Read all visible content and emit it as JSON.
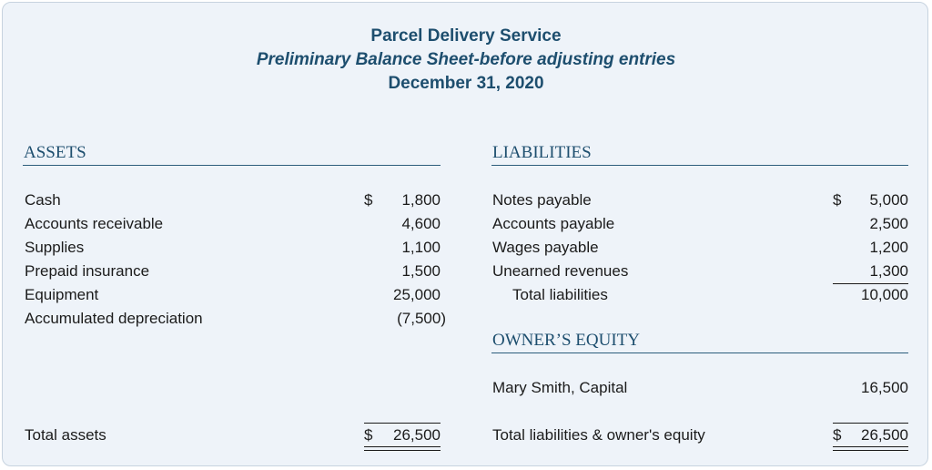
{
  "header": {
    "company": "Parcel Delivery Service",
    "title": "Preliminary Balance Sheet-before adjusting entries",
    "date": "December 31, 2020"
  },
  "assets": {
    "heading": "ASSETS",
    "rows": [
      {
        "label": "Cash",
        "currency": "$",
        "amount": "1,800"
      },
      {
        "label": "Accounts receivable",
        "amount": "4,600"
      },
      {
        "label": "Supplies",
        "amount": "1,100"
      },
      {
        "label": "Prepaid insurance",
        "amount": "1,500"
      },
      {
        "label": "Equipment",
        "amount": "25,000"
      },
      {
        "label": "Accumulated depreciation",
        "amount": "(7,500)"
      }
    ],
    "total": {
      "label": "Total assets",
      "currency": "$",
      "amount": "26,500"
    }
  },
  "liabilities": {
    "heading": "LIABILITIES",
    "rows": [
      {
        "label": "Notes payable",
        "currency": "$",
        "amount": "5,000"
      },
      {
        "label": "Accounts payable",
        "amount": "2,500"
      },
      {
        "label": "Wages payable",
        "amount": "1,200"
      },
      {
        "label": "Unearned revenues",
        "amount": "1,300"
      }
    ],
    "total": {
      "label": "Total liabilities",
      "amount": "10,000"
    }
  },
  "equity": {
    "heading": "OWNER’S EQUITY",
    "rows": [
      {
        "label": "Mary Smith, Capital",
        "amount": "16,500"
      }
    ],
    "total": {
      "label": "Total liabilities & owner's equity",
      "currency": "$",
      "amount": "26,500"
    }
  }
}
